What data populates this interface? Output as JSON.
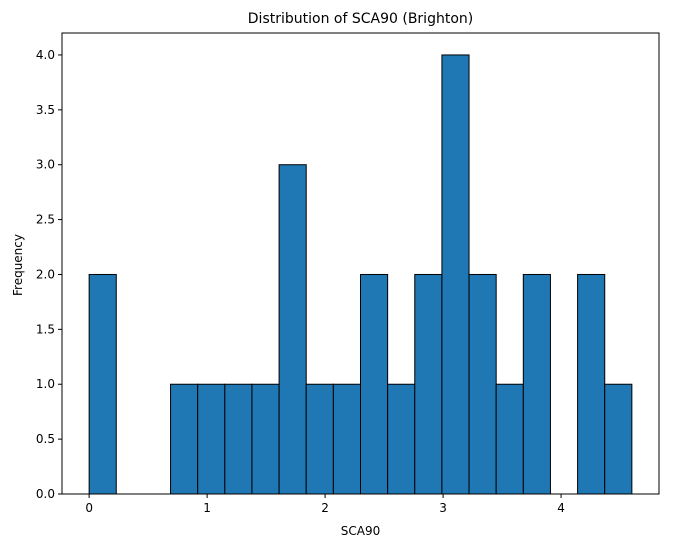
{
  "chart_data": {
    "type": "bar",
    "title": "Distribution of SCA90 (Brighton)",
    "xlabel": "SCA90",
    "ylabel": "Frequency",
    "bar_color": "#1f77b4",
    "edge_color": "#000000",
    "bin_edges": [
      0.0,
      0.23,
      0.46,
      0.69,
      0.92,
      1.15,
      1.38,
      1.61,
      1.84,
      2.07,
      2.3,
      2.53,
      2.76,
      2.99,
      3.22,
      3.45,
      3.68,
      3.91,
      4.14,
      4.37,
      4.6
    ],
    "values": [
      2,
      0,
      0,
      1,
      1,
      1,
      1,
      3,
      1,
      1,
      2,
      1,
      2,
      4,
      2,
      1,
      2,
      0,
      2,
      1
    ],
    "xlim": [
      -0.23,
      4.83
    ],
    "ylim": [
      0,
      4.2
    ],
    "x_ticks": [
      0,
      1,
      2,
      3,
      4
    ],
    "x_tick_labels": [
      "0",
      "1",
      "2",
      "3",
      "4"
    ],
    "y_ticks": [
      0,
      0.5,
      1,
      1.5,
      2,
      2.5,
      3,
      3.5,
      4
    ],
    "y_tick_labels": [
      "0.0",
      "0.5",
      "1.0",
      "1.5",
      "2.0",
      "2.5",
      "3.0",
      "3.5",
      "4.0"
    ],
    "grid": false,
    "legend": "none"
  }
}
